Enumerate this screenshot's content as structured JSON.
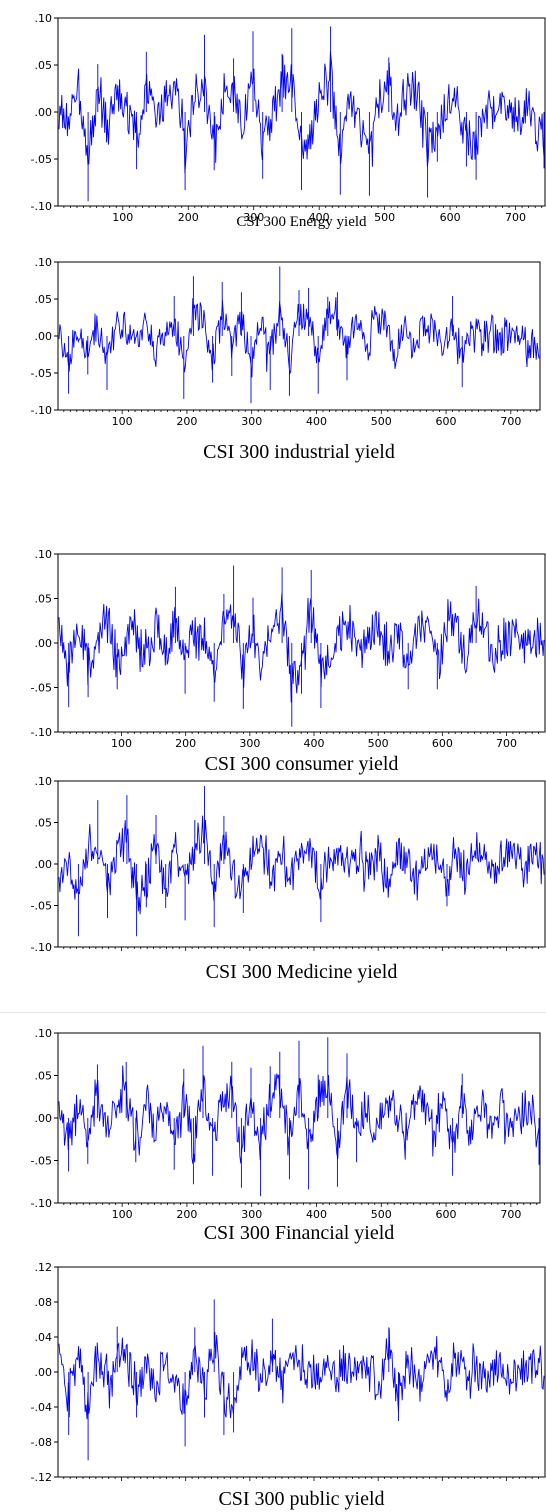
{
  "chart_data": [
    {
      "type": "line",
      "title": "CSI 300 Energy yield",
      "xlabel": "",
      "ylabel": "",
      "x_ticks": [
        "100",
        "200",
        "300",
        "400",
        "500",
        "600",
        "700"
      ],
      "y_ticks": [
        ".10",
        ".05",
        ".00",
        "-.05",
        "-.10"
      ],
      "xlim": [
        1,
        745
      ],
      "ylim": [
        -0.1,
        0.1
      ],
      "series": [
        {
          "values": [
            0.012,
            -0.018,
            0.035,
            -0.095,
            0.051,
            -0.041,
            0.047,
            0.012,
            -0.061,
            0.064,
            -0.018,
            0.029,
            0.048,
            -0.083,
            0.036,
            0.082,
            -0.062,
            0.022,
            0.057,
            -0.036,
            0.086,
            -0.071,
            -0.011,
            0.062,
            0.089,
            -0.083,
            -0.049,
            0.039,
            0.091,
            -0.088,
            0.041,
            -0.019,
            -0.089,
            0.025,
            0.058,
            -0.025,
            0.047,
            0.049,
            -0.091,
            -0.053,
            0.021,
            0.024,
            -0.058,
            -0.072,
            0.015,
            -0.005,
            0.009,
            -0.018,
            0.006,
            -0.021,
            -0.06
          ]
        }
      ],
      "colors": {
        "line": "#0000ff"
      }
    },
    {
      "type": "line",
      "title": "CSI 300 industrial yield",
      "xlabel": "",
      "ylabel": "",
      "x_ticks": [
        "100",
        "200",
        "300",
        "400",
        "500",
        "600",
        "700"
      ],
      "y_ticks": [
        ".10",
        ".05",
        ".00",
        "-.05",
        "-.10"
      ],
      "xlim": [
        1,
        745
      ],
      "ylim": [
        -0.1,
        0.1
      ],
      "series": [
        {
          "values": [
            0.013,
            -0.078,
            0.027,
            -0.052,
            0.041,
            -0.073,
            0.036,
            0.029,
            -0.037,
            0.03,
            -0.034,
            -0.011,
            0.054,
            -0.085,
            0.081,
            0.044,
            -0.063,
            0.073,
            -0.054,
            0.059,
            -0.091,
            0.041,
            -0.073,
            0.094,
            -0.081,
            0.062,
            0.065,
            -0.078,
            0.053,
            0.059,
            -0.06,
            0.047,
            -0.045,
            0.043,
            0.035,
            -0.05,
            0.032,
            -0.037,
            0.031,
            0.021,
            -0.032,
            0.054,
            -0.069,
            0.027,
            -0.014,
            0.027,
            -0.021,
            0.015,
            0.021,
            -0.05,
            -0.038
          ]
        }
      ],
      "colors": {
        "line": "#0000ff"
      }
    },
    {
      "type": "line",
      "title": "CSI 300 consumer yield",
      "xlabel": "",
      "ylabel": "",
      "x_ticks": [
        "100",
        "200",
        "300",
        "400",
        "500",
        "600",
        "700"
      ],
      "y_ticks": [
        ".10",
        ".05",
        ".00",
        "-.05",
        "-.10"
      ],
      "xlim": [
        1,
        760
      ],
      "ylim": [
        -0.1,
        0.1
      ],
      "series": [
        {
          "values": [
            0.028,
            -0.072,
            0.044,
            -0.061,
            0.013,
            0.039,
            -0.052,
            0.036,
            0.019,
            -0.039,
            0.046,
            -0.034,
            0.063,
            -0.057,
            0.035,
            0.014,
            -0.066,
            0.055,
            0.087,
            -0.074,
            0.051,
            -0.048,
            0.038,
            0.085,
            -0.094,
            -0.057,
            0.082,
            -0.073,
            -0.047,
            0.027,
            0.039,
            -0.031,
            0.028,
            0.044,
            -0.038,
            0.021,
            -0.052,
            0.031,
            0.047,
            -0.052,
            0.036,
            0.029,
            -0.038,
            0.064,
            0.021,
            -0.039,
            0.012,
            0.018,
            -0.021,
            0.024,
            -0.025
          ]
        }
      ],
      "colors": {
        "line": "#0000ff"
      }
    },
    {
      "type": "line",
      "title": "CSI 300 Medicine yield",
      "xlabel": "",
      "ylabel": "",
      "x_ticks": [],
      "y_ticks": [
        ".10",
        ".05",
        ".00",
        "-.05",
        "-.10"
      ],
      "xlim": [
        1,
        760
      ],
      "ylim": [
        -0.1,
        0.1
      ],
      "series": [
        {
          "values": [
            -0.041,
            0.013,
            -0.087,
            0.041,
            0.077,
            -0.065,
            0.044,
            0.083,
            -0.087,
            -0.052,
            0.059,
            -0.053,
            0.041,
            -0.068,
            0.053,
            0.094,
            -0.076,
            0.058,
            -0.035,
            -0.059,
            0.037,
            0.026,
            -0.038,
            0.038,
            -0.031,
            0.032,
            0.029,
            -0.07,
            0.034,
            0.022,
            -0.016,
            0.025,
            -0.031,
            0.031,
            -0.049,
            0.027,
            0.012,
            -0.043,
            0.031,
            0.016,
            -0.051,
            0.025,
            -0.018,
            0.037,
            0.012,
            -0.031,
            0.021,
            0.018,
            -0.022,
            0.042,
            -0.035
          ]
        }
      ],
      "colors": {
        "line": "#0000ff"
      }
    },
    {
      "type": "line",
      "title": "CSI 300 Financial yield",
      "xlabel": "",
      "ylabel": "",
      "x_ticks": [
        "100",
        "200",
        "300",
        "400",
        "500",
        "600",
        "700"
      ],
      "y_ticks": [
        ".10",
        ".05",
        ".00",
        "-.05",
        "-.10"
      ],
      "xlim": [
        1,
        745
      ],
      "ylim": [
        -0.1,
        0.1
      ],
      "series": [
        {
          "values": [
            0.025,
            -0.063,
            0.047,
            -0.054,
            0.063,
            -0.033,
            0.048,
            0.066,
            -0.052,
            0.035,
            -0.036,
            0.047,
            -0.061,
            0.058,
            -0.078,
            0.085,
            -0.068,
            0.047,
            0.066,
            -0.082,
            0.059,
            -0.092,
            0.061,
            0.078,
            -0.072,
            0.091,
            -0.084,
            0.051,
            0.095,
            -0.081,
            0.076,
            -0.052,
            0.042,
            -0.048,
            0.046,
            0.035,
            -0.044,
            0.037,
            0.043,
            -0.038,
            0.036,
            -0.068,
            0.052,
            -0.041,
            0.029,
            -0.034,
            0.033,
            -0.024,
            0.025,
            0.021,
            -0.055
          ]
        }
      ],
      "colors": {
        "line": "#0000ff"
      }
    },
    {
      "type": "line",
      "title": "CSI 300 public  yield",
      "xlabel": "",
      "ylabel": "",
      "x_ticks": [],
      "y_ticks": [
        ".12",
        ".08",
        ".04",
        ".00",
        "-.04",
        "-.08",
        "-.12"
      ],
      "xlim": [
        1,
        760
      ],
      "ylim": [
        -0.12,
        0.12
      ],
      "series": [
        {
          "values": [
            0.028,
            -0.072,
            0.042,
            -0.101,
            0.039,
            -0.035,
            0.052,
            0.031,
            -0.052,
            0.024,
            -0.038,
            0.047,
            -0.029,
            -0.085,
            0.051,
            -0.052,
            0.083,
            -0.072,
            -0.069,
            0.036,
            0.042,
            -0.041,
            0.061,
            -0.034,
            0.033,
            0.028,
            -0.023,
            0.017,
            -0.021,
            0.024,
            0.021,
            -0.018,
            0.013,
            -0.035,
            0.051,
            -0.056,
            0.028,
            -0.042,
            0.035,
            0.019,
            -0.031,
            0.026,
            -0.012,
            0.015,
            -0.021,
            0.017,
            0.009,
            -0.015,
            0.011,
            0.014,
            -0.009
          ]
        }
      ],
      "colors": {
        "line": "#0000ff"
      }
    }
  ]
}
